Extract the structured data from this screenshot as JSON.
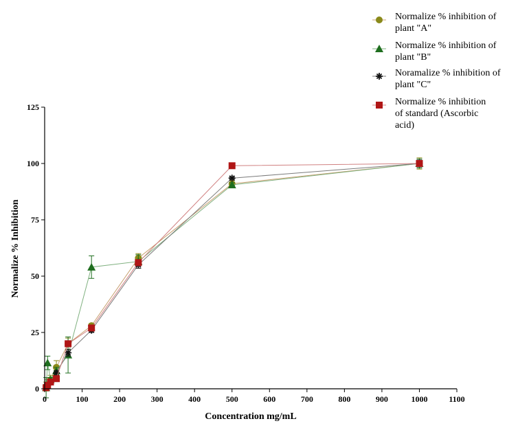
{
  "chart_data": {
    "type": "line",
    "title": "",
    "xlabel": "Concentration mg/mL",
    "ylabel": "Normalize % Inhibition",
    "xlim": [
      0,
      1100
    ],
    "ylim": [
      0,
      125
    ],
    "x_ticks": [
      0,
      100,
      200,
      300,
      400,
      500,
      600,
      700,
      800,
      900,
      1000,
      1100
    ],
    "y_ticks": [
      0,
      25,
      50,
      75,
      100,
      125
    ],
    "grid": false,
    "legend_position": "top-right",
    "series": [
      {
        "name": "Normalize % inhibition of plant \"A\"",
        "legend_lines": [
          "Normalize % inhibition of",
          "plant \"A\""
        ],
        "marker": "circle",
        "color": "#8a8a1a",
        "line_color": "#c8a070",
        "x": [
          3.9,
          7.8,
          15.6,
          31.25,
          62.5,
          125,
          250,
          500,
          1000
        ],
        "y": [
          1.0,
          2.0,
          4.0,
          9.5,
          20.0,
          28.0,
          58.0,
          91.0,
          100.0
        ],
        "err": [
          2.0,
          2.0,
          2.0,
          3.0,
          2.5,
          1.0,
          2.0,
          1.5,
          2.5
        ]
      },
      {
        "name": "Normalize % inhibition of plant \"B\"",
        "legend_lines": [
          "Normalize % inhibition of",
          "plant \"B\""
        ],
        "marker": "triangle",
        "color": "#1f6e1f",
        "line_color": "#7fb07f",
        "x": [
          3.9,
          7.8,
          15.6,
          31.25,
          62.5,
          125,
          250,
          500,
          1000
        ],
        "y": [
          0.5,
          11.5,
          4.0,
          8.0,
          15.0,
          54.0,
          56.5,
          90.5,
          100.0
        ],
        "err": [
          4.5,
          3.0,
          1.0,
          1.5,
          8.0,
          5.0,
          3.0,
          1.0,
          2.0
        ]
      },
      {
        "name": "Noramalize % inhibition of plant \"C\"",
        "legend_lines": [
          "Noramalize % inhibition of",
          "plant \"C\""
        ],
        "marker": "asterisk",
        "color": "#111111",
        "line_color": "#7a7a7a",
        "x": [
          3.9,
          7.8,
          15.6,
          31.25,
          62.5,
          125,
          250,
          500,
          1000
        ],
        "y": [
          0.5,
          1.5,
          3.0,
          7.0,
          16.0,
          26.0,
          55.0,
          93.5,
          100.0
        ],
        "err": [
          1.0,
          1.0,
          1.0,
          1.0,
          1.5,
          1.0,
          1.5,
          0.5,
          1.5
        ]
      },
      {
        "name": "Normalize % inhibition of standard (Ascorbic acid)",
        "legend_lines": [
          "Normalize % inhibition",
          "of standard (Ascorbic",
          "acid)"
        ],
        "marker": "square",
        "color": "#b01616",
        "line_color": "#d08080",
        "x": [
          3.9,
          7.8,
          15.6,
          31.25,
          62.5,
          125,
          250,
          500,
          1000
        ],
        "y": [
          0.5,
          1.5,
          3.0,
          4.5,
          20.0,
          27.0,
          56.0,
          99.0,
          100.0
        ],
        "err": [
          0.5,
          0.5,
          0.5,
          0.5,
          1.0,
          1.0,
          1.0,
          0.5,
          1.0
        ]
      }
    ]
  }
}
